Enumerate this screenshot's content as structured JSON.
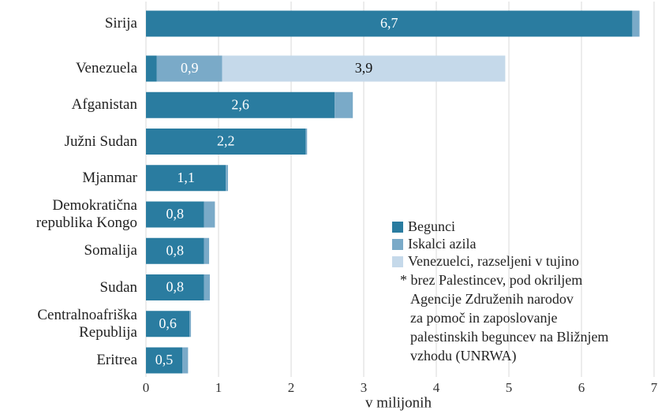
{
  "chart_data": {
    "type": "stacked-barh",
    "categories": [
      "Sirija",
      "Venezuela",
      "Afganistan",
      "Južni Sudan",
      "Mjanmar",
      "Demokratična\nrepublika Kongo",
      "Somalija",
      "Sudan",
      "Centralnoafriška\nRepublija",
      "Eritrea"
    ],
    "series": [
      {
        "name": "Begunci",
        "color": "#2a7ca0",
        "values": [
          6.7,
          0.15,
          2.6,
          2.2,
          1.1,
          0.8,
          0.8,
          0.8,
          0.6,
          0.5
        ],
        "value_labels": [
          "6,7",
          null,
          "2,6",
          "2,2",
          "1,1",
          "0,8",
          "0,8",
          "0,8",
          "0,6",
          "0,5"
        ]
      },
      {
        "name": "Iskalci azila",
        "color": "#7aaac8",
        "values": [
          0.1,
          0.9,
          0.25,
          0.02,
          0.03,
          0.15,
          0.07,
          0.08,
          0.02,
          0.08
        ],
        "value_labels": [
          null,
          "0,9",
          null,
          null,
          null,
          null,
          null,
          null,
          null,
          null
        ]
      },
      {
        "name": "Venezuelci, razseljeni v tujino",
        "color": "#c5d9ea",
        "values": [
          0,
          3.9,
          0,
          0,
          0,
          0,
          0,
          0,
          0,
          0
        ],
        "value_labels": [
          null,
          "3,9",
          null,
          null,
          null,
          null,
          null,
          null,
          null,
          null
        ]
      }
    ],
    "xlabel": "v milijonih",
    "xlim": [
      0,
      7
    ],
    "xticks": [
      0,
      1,
      2,
      3,
      4,
      5,
      6,
      7
    ],
    "grid": true,
    "note": [
      "* brez Palestincev, pod okriljem",
      "Agencije Združenih narodov",
      "za pomoč in zaposlovanje",
      "palestinskih beguncev na Bližnjem",
      "vzhodu (UNRWA)"
    ]
  }
}
